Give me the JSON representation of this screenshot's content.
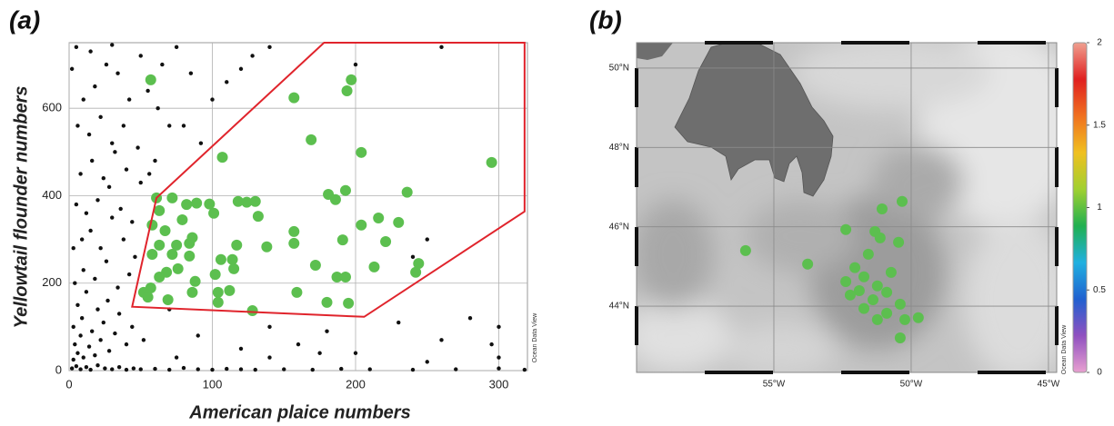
{
  "chart_data": [
    {
      "type": "scatter",
      "title": "(a)",
      "xlabel": "American plaice numbers",
      "ylabel": "Yellowtail flounder numbers",
      "watermark": "Ocean Data View",
      "xlim": [
        0,
        320
      ],
      "ylim": [
        0,
        750
      ],
      "xticks": [
        0,
        100,
        200,
        300
      ],
      "yticks": [
        0,
        200,
        400,
        600
      ],
      "grid": true,
      "series": [
        {
          "color": "#111111",
          "marker_size": 2.2,
          "x": [
            2,
            5,
            8,
            12,
            15,
            20,
            25,
            30,
            35,
            40,
            45,
            50,
            60,
            70,
            80,
            90,
            100,
            110,
            120,
            130,
            150,
            170,
            190,
            210,
            240,
            270,
            300,
            318,
            3,
            6,
            10,
            4,
            8,
            14,
            18,
            22,
            28,
            3,
            9,
            16,
            24,
            32,
            40,
            6,
            12,
            20,
            27,
            35,
            44,
            52,
            4,
            10,
            18,
            26,
            34,
            42,
            3,
            9,
            15,
            22,
            30,
            38,
            46,
            5,
            12,
            20,
            28,
            36,
            44,
            8,
            16,
            24,
            32,
            40,
            50,
            6,
            14,
            22,
            30,
            38,
            48,
            10,
            18,
            26,
            34,
            42,
            55,
            62,
            70,
            15,
            30,
            50,
            65,
            75,
            85,
            100,
            110,
            120,
            128,
            140,
            92,
            80,
            56,
            60,
            140,
            160,
            180,
            200,
            230,
            260,
            280,
            300,
            240,
            250,
            200,
            260,
            300,
            120,
            90,
            70,
            250,
            295,
            5,
            2,
            75,
            140,
            175
          ],
          "values": [
            5,
            10,
            3,
            8,
            2,
            12,
            5,
            3,
            8,
            2,
            5,
            3,
            4,
            2,
            6,
            3,
            2,
            4,
            3,
            2,
            3,
            2,
            4,
            3,
            2,
            3,
            5,
            2,
            25,
            40,
            30,
            60,
            80,
            55,
            35,
            70,
            45,
            100,
            120,
            90,
            110,
            85,
            60,
            150,
            180,
            140,
            160,
            130,
            100,
            70,
            200,
            230,
            210,
            250,
            190,
            220,
            280,
            300,
            320,
            280,
            350,
            300,
            260,
            380,
            360,
            390,
            420,
            370,
            340,
            450,
            480,
            440,
            500,
            460,
            430,
            560,
            540,
            580,
            520,
            560,
            510,
            620,
            650,
            700,
            680,
            620,
            640,
            600,
            560,
            730,
            745,
            720,
            700,
            740,
            680,
            620,
            660,
            690,
            720,
            740,
            520,
            560,
            450,
            480,
            30,
            60,
            90,
            40,
            110,
            70,
            120,
            30,
            260,
            300,
            700,
            740,
            100,
            50,
            80,
            140,
            20,
            60,
            740,
            690,
            30,
            100,
            40
          ]
        },
        {
          "color": "#5cbf4f",
          "marker_size": 6,
          "x": [
            57,
            157,
            197,
            194,
            169,
            107,
            204,
            295,
            236,
            181,
            193,
            186,
            61,
            72,
            82,
            89,
            98,
            101,
            118,
            124,
            130,
            132,
            63,
            79,
            58,
            67,
            86,
            84,
            75,
            63,
            58,
            117,
            138,
            157,
            157,
            216,
            204,
            230,
            221,
            191,
            172,
            213,
            244,
            242,
            84,
            72,
            68,
            106,
            114,
            102,
            115,
            63,
            76,
            88,
            86,
            57,
            52,
            55,
            69,
            104,
            112,
            104,
            159,
            180,
            195,
            187,
            193,
            128
          ],
          "values": [
            665,
            624,
            665,
            640,
            528,
            488,
            499,
            476,
            408,
            403,
            412,
            391,
            395,
            395,
            380,
            383,
            381,
            360,
            387,
            385,
            387,
            353,
            366,
            345,
            333,
            320,
            304,
            291,
            287,
            287,
            266,
            287,
            283,
            318,
            291,
            349,
            333,
            339,
            295,
            299,
            241,
            237,
            245,
            225,
            262,
            266,
            225,
            254,
            254,
            220,
            233,
            214,
            233,
            204,
            179,
            189,
            179,
            168,
            162,
            179,
            183,
            156,
            179,
            156,
            154,
            214,
            214,
            137
          ]
        }
      ],
      "polygon": {
        "color": "#e0242c",
        "x": [
          44,
          61,
          178,
          318,
          318,
          206
        ],
        "values": [
          146,
          395,
          750,
          750,
          364,
          123
        ]
      }
    },
    {
      "type": "map",
      "title": "(b)",
      "watermark": "Ocean Data View",
      "xlim": [
        -60,
        -44.7
      ],
      "ylim": [
        42.33,
        50.64
      ],
      "xticks": [
        {
          "value": -55,
          "label": "55°W"
        },
        {
          "value": -50,
          "label": "50°W"
        },
        {
          "value": -45,
          "label": "45°W"
        }
      ],
      "yticks": [
        {
          "value": 44,
          "label": "44°N"
        },
        {
          "value": 46,
          "label": "46°N"
        },
        {
          "value": 48,
          "label": "48°N"
        },
        {
          "value": 50,
          "label": "50°N"
        }
      ],
      "grid": true,
      "series": [
        {
          "color": "#5cbf4f",
          "marker_size": 6,
          "x": [
            -50.33,
            -51.06,
            -51.32,
            -52.38,
            -51.13,
            -50.46,
            -56.03,
            -53.77,
            -51.56,
            -52.05,
            -50.73,
            -51.72,
            -52.38,
            -51.23,
            -51.89,
            -50.89,
            -52.22,
            -51.39,
            -50.4,
            -51.72,
            -50.89,
            -49.74,
            -50.23,
            -51.23,
            -50.4
          ],
          "values": [
            46.64,
            46.45,
            45.88,
            45.93,
            45.72,
            45.61,
            45.4,
            45.06,
            45.31,
            44.97,
            44.85,
            44.74,
            44.62,
            44.51,
            44.39,
            44.35,
            44.28,
            44.16,
            44.05,
            43.94,
            43.82,
            43.71,
            43.66,
            43.66,
            43.2
          ]
        }
      ],
      "colorbar": {
        "lim": [
          0,
          2
        ],
        "ticks": [
          0,
          0.5,
          1,
          1.5,
          2
        ],
        "colors": [
          "#e8a0d0",
          "#9050c0",
          "#2060d0",
          "#20b0e0",
          "#20b050",
          "#a0d030",
          "#f0c020",
          "#f07020",
          "#e02020",
          "#f0a090"
        ]
      }
    }
  ]
}
